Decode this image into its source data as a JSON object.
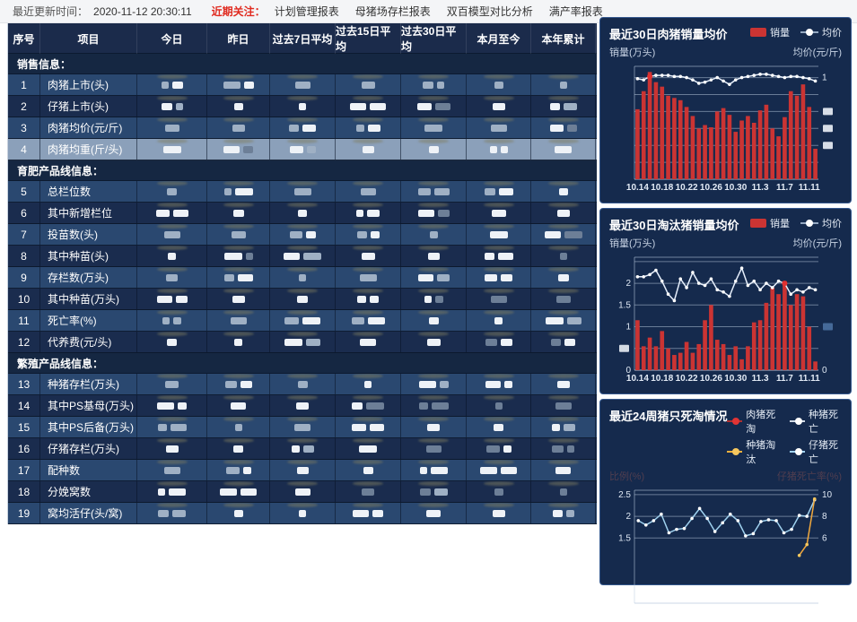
{
  "topbar": {
    "updated_label": "最近更新时间：",
    "updated_time": "2020-11-12 20:30:11",
    "focus_label": "近期关注：",
    "links": [
      "计划管理报表",
      "母猪场存栏报表",
      "双百模型对比分析",
      "满产率报表"
    ]
  },
  "table": {
    "columns": [
      "序号",
      "项目",
      "今日",
      "昨日",
      "过去7日平均",
      "过去15日平均",
      "过去30日平均",
      "本月至今",
      "本年累计"
    ],
    "redaction_note": "all numeric cell values are blurred/redacted in the source screenshot",
    "selected_row_no": 4,
    "sections": [
      {
        "label": "销售信息：",
        "rows": [
          {
            "no": 1,
            "name": "肉猪上市(头)"
          },
          {
            "no": 2,
            "name": "仔猪上市(头)"
          },
          {
            "no": 3,
            "name": "肉猪均价(元/斤)"
          },
          {
            "no": 4,
            "name": "肉猪均重(斤/头)",
            "highlight": true
          }
        ]
      },
      {
        "label": "育肥产品线信息：",
        "rows": [
          {
            "no": 5,
            "name": "总栏位数"
          },
          {
            "no": 6,
            "name": "其中新增栏位"
          },
          {
            "no": 7,
            "name": "投苗数(头)"
          },
          {
            "no": 8,
            "name": "其中种苗(头)"
          },
          {
            "no": 9,
            "name": "存栏数(万头)"
          },
          {
            "no": 10,
            "name": "其中种苗(万头)"
          },
          {
            "no": 11,
            "name": "死亡率(%)"
          },
          {
            "no": 12,
            "name": "代养费(元/头)"
          }
        ]
      },
      {
        "label": "繁殖产品线信息：",
        "rows": [
          {
            "no": 13,
            "name": "种猪存栏(万头)"
          },
          {
            "no": 14,
            "name": "其中PS基母(万头)"
          },
          {
            "no": 15,
            "name": "其中PS后备(万头)"
          },
          {
            "no": 16,
            "name": "仔猪存栏(万头)"
          },
          {
            "no": 17,
            "name": "配种数"
          },
          {
            "no": 18,
            "name": "分娩窝数"
          },
          {
            "no": 19,
            "name": "窝均活仔(头/窝)"
          }
        ]
      }
    ]
  },
  "chart_data": [
    {
      "type": "bar",
      "title": "最近30日肉猪销量均价",
      "legend": [
        {
          "label": "销量",
          "swatch": "bar",
          "color": "#cb3433"
        },
        {
          "label": "均价",
          "swatch": "line",
          "color": "#93a7c0",
          "dot": "#ffffff"
        }
      ],
      "y_left_caption": "销量(万头)",
      "y_right_caption": "均价(元/斤)",
      "ylim": [
        0,
        100
      ],
      "grid": [
        {
          "v": 90,
          "r": "1"
        },
        {
          "v": 75
        },
        {
          "v": 60,
          "rb": true
        },
        {
          "v": 45,
          "rb": true
        },
        {
          "v": 30,
          "rb": true
        },
        {
          "v": 15
        }
      ],
      "x_labels": [
        "10.14",
        "10.18",
        "10.22",
        "10.26",
        "10.30",
        "11.3",
        "11.7",
        "11.11"
      ],
      "x_label_indices": [
        0,
        4,
        8,
        12,
        16,
        20,
        24,
        28
      ],
      "bar_color": "#cb3433",
      "values": [
        62,
        78,
        95,
        86,
        82,
        74,
        72,
        70,
        64,
        56,
        45,
        48,
        46,
        60,
        63,
        57,
        42,
        52,
        56,
        50,
        61,
        66,
        45,
        38,
        55,
        78,
        74,
        84,
        64,
        27
      ],
      "series": [
        {
          "name": "均价",
          "type": "line",
          "color": "#e6effc",
          "values": [
            89,
            88,
            91,
            92,
            92,
            92,
            91,
            91,
            90,
            88,
            85,
            86,
            88,
            90,
            87,
            84,
            88,
            90,
            91,
            92,
            93,
            93,
            92,
            91,
            90,
            91,
            91,
            90,
            89,
            87
          ],
          "highlight_index": 2
        }
      ],
      "note": "numeric axis tick labels are blurred in the source; only right-axis '1' is legible"
    },
    {
      "type": "bar",
      "title": "最近30日淘汰猪销量均价",
      "legend": [
        {
          "label": "销量",
          "swatch": "bar",
          "color": "#cb3433"
        },
        {
          "label": "均价",
          "swatch": "line",
          "color": "#93a7c0",
          "dot": "#ffffff"
        }
      ],
      "y_left_caption": "销量(万头)",
      "y_right_caption": "均价(元/斤)",
      "ylim": [
        0,
        2.6
      ],
      "grid": [
        {
          "v": 2.5
        },
        {
          "v": 2,
          "l": "2"
        },
        {
          "v": 1.5,
          "l": "1.5"
        },
        {
          "v": 1,
          "l": "1",
          "rb": true,
          "rbc": "#4a6f9e"
        },
        {
          "v": 0.5,
          "lb": true
        },
        {
          "v": 0,
          "l": "0",
          "r": "0"
        }
      ],
      "x_labels": [
        "10.14",
        "10.18",
        "10.22",
        "10.26",
        "10.30",
        "11.3",
        "11.7",
        "11.11"
      ],
      "x_label_indices": [
        0,
        4,
        8,
        12,
        16,
        20,
        24,
        28
      ],
      "bar_color": "#cb3433",
      "values": [
        1.15,
        0.55,
        0.75,
        0.55,
        0.9,
        0.5,
        0.35,
        0.4,
        0.65,
        0.4,
        0.6,
        1.15,
        1.5,
        0.7,
        0.6,
        0.35,
        0.55,
        0.25,
        0.55,
        1.1,
        1.15,
        1.55,
        1.9,
        1.75,
        2.05,
        1.5,
        1.75,
        1.7,
        1.0,
        0.2
      ],
      "series": [
        {
          "name": "均价",
          "type": "line",
          "color": "#e6effc",
          "values": [
            2.15,
            2.15,
            2.2,
            2.3,
            2.05,
            1.75,
            1.6,
            2.1,
            1.9,
            2.25,
            2.0,
            1.95,
            2.1,
            1.85,
            1.8,
            1.7,
            2.05,
            2.35,
            1.95,
            2.05,
            1.85,
            2.0,
            1.9,
            2.05,
            2.0,
            1.75,
            1.85,
            1.8,
            1.9,
            1.85
          ],
          "highlight_index": 24
        }
      ]
    },
    {
      "type": "line",
      "title": "最近24周猪只死淘情况",
      "legend": [
        {
          "label": "肉猪死淘",
          "swatch": "line",
          "color": "#b03030",
          "dot": "#e23434"
        },
        {
          "label": "种猪死亡",
          "swatch": "line",
          "color": "#cfd8e4",
          "dot": "#ffffff"
        },
        {
          "label": "种猪淘汰",
          "swatch": "line",
          "color": "#f2b13d",
          "dot": "#f6c75e"
        },
        {
          "label": "仔猪死亡",
          "swatch": "line",
          "color": "#9fd1ef",
          "dot": "#ffffff"
        }
      ],
      "y_left_caption": "比例(%)",
      "y_right_caption": "仔猪死亡率(%)",
      "captions_ghost": true,
      "ylim": [
        0,
        2.6
      ],
      "grid": [
        {
          "v": 2.5,
          "l": "2.5",
          "r": "10"
        },
        {
          "v": 2,
          "l": "2",
          "r": "8"
        },
        {
          "v": 1.5,
          "l": "1.5",
          "r": "6"
        }
      ],
      "x_labels": [],
      "x_label_indices": [],
      "series": [
        {
          "name": "仔猪死亡",
          "type": "line",
          "color": "#9fd1ef",
          "values": [
            1.9,
            1.8,
            1.9,
            2.05,
            1.62,
            1.7,
            1.72,
            1.95,
            2.18,
            1.95,
            1.65,
            1.85,
            2.05,
            1.9,
            1.55,
            1.6,
            1.88,
            1.92,
            1.9,
            1.62,
            1.7,
            2.02,
            2.0,
            2.38
          ]
        },
        {
          "name": "种猪淘汰",
          "type": "line",
          "color": "#f2a93d",
          "values": [
            null,
            null,
            null,
            null,
            null,
            null,
            null,
            null,
            null,
            null,
            null,
            null,
            null,
            null,
            null,
            null,
            null,
            null,
            null,
            null,
            null,
            1.1,
            1.35,
            2.4
          ]
        }
      ],
      "note": "chart is clipped by the bottom edge of the screenshot; axis-title texts appear blurred"
    }
  ]
}
